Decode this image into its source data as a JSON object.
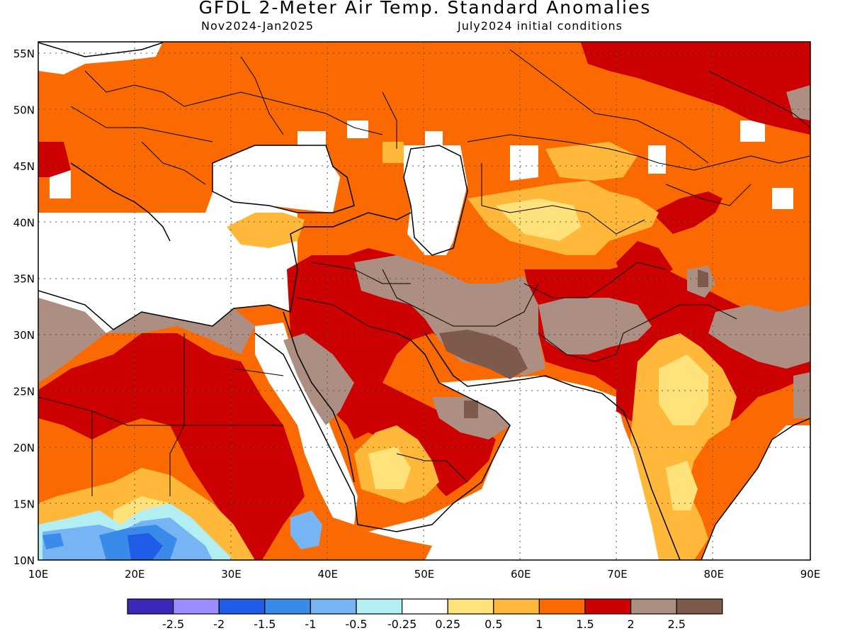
{
  "title": "GFDL 2-Meter Air Temp. Standard Anomalies",
  "period": "Nov2024-Jan2025",
  "init": "July2024 initial conditions",
  "map": {
    "lon_range": [
      10,
      90
    ],
    "lat_range": [
      10,
      56
    ],
    "x_ticks": [
      "10E",
      "20E",
      "30E",
      "40E",
      "50E",
      "60E",
      "70E",
      "80E",
      "90E"
    ],
    "y_ticks": [
      "55N",
      "50N",
      "45N",
      "40N",
      "35N",
      "30N",
      "25N",
      "20N",
      "15N",
      "10N"
    ],
    "grid": "dotted"
  },
  "legend": {
    "colors": [
      "#3b28b8",
      "#9a8cff",
      "#1f5ce8",
      "#3a8aea",
      "#76b4f4",
      "#b2eef2",
      "#ffffff",
      "#ffe27a",
      "#ffb83a",
      "#fb6a00",
      "#cc0000",
      "#ad8e83",
      "#7e5a4c"
    ],
    "labels": [
      "-2.5",
      "-2",
      "-1.5",
      "-1",
      "-0.5",
      "-0.25",
      "0.25",
      "0.5",
      "1",
      "1.5",
      "2",
      "2.5"
    ]
  }
}
